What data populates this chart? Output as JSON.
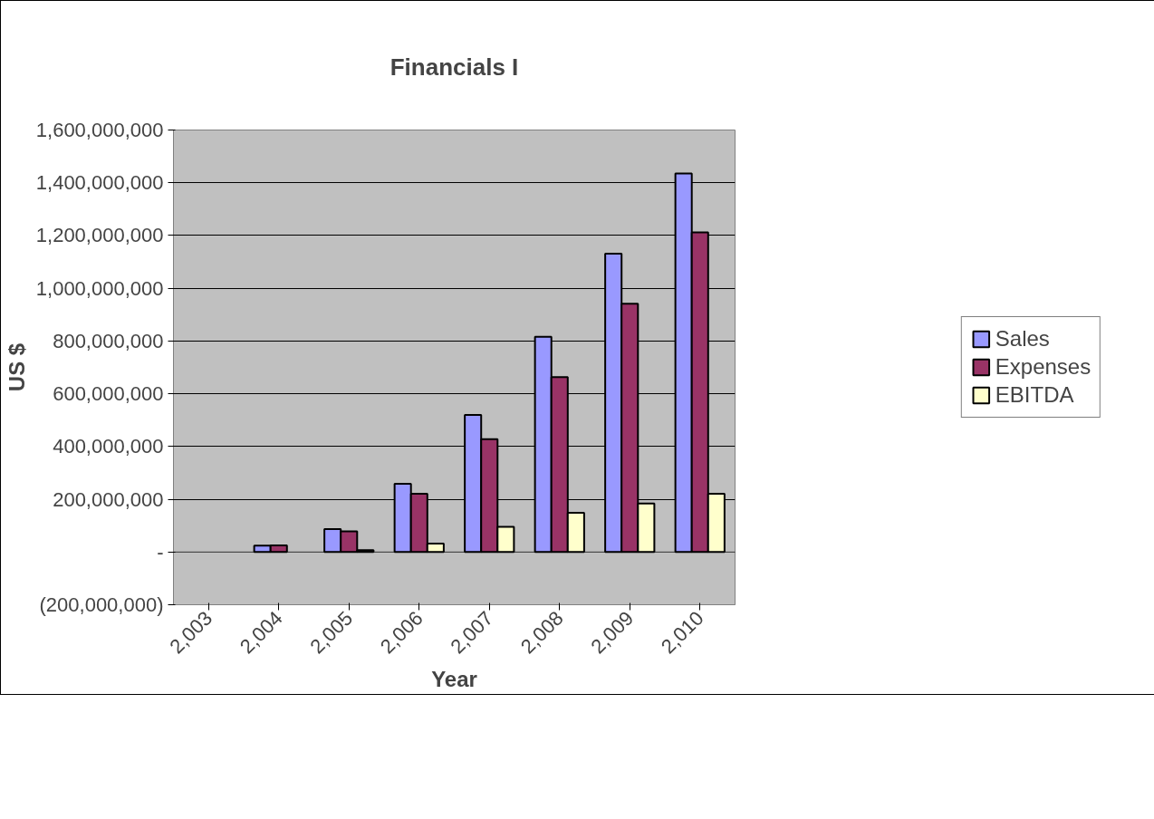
{
  "chart_data": {
    "type": "bar",
    "title": "Financials I",
    "xlabel": "Year",
    "ylabel": "US $",
    "categories": [
      "2,003",
      "2,004",
      "2,005",
      "2,006",
      "2,007",
      "2,008",
      "2,009",
      "2,010"
    ],
    "series": [
      {
        "name": "Sales",
        "color": "#9999ff",
        "values": [
          null,
          24000000,
          87000000,
          259000000,
          520000000,
          816000000,
          1131000000,
          1435000000
        ]
      },
      {
        "name": "Expenses",
        "color": "#993366",
        "values": [
          null,
          25000000,
          78000000,
          221000000,
          428000000,
          663000000,
          941000000,
          1212000000
        ]
      },
      {
        "name": "EBITDA",
        "color": "#ffffcc",
        "values": [
          null,
          null,
          7000000,
          32000000,
          95000000,
          149000000,
          184000000,
          221000000
        ]
      }
    ],
    "ylim": [
      -200000000,
      1600000000
    ],
    "yticks": [
      {
        "value": -200000000,
        "label": "(200,000,000)"
      },
      {
        "value": 0,
        "label": "-"
      },
      {
        "value": 200000000,
        "label": "200,000,000"
      },
      {
        "value": 400000000,
        "label": "400,000,000"
      },
      {
        "value": 600000000,
        "label": "600,000,000"
      },
      {
        "value": 800000000,
        "label": "800,000,000"
      },
      {
        "value": 1000000000,
        "label": "1,000,000,000"
      },
      {
        "value": 1200000000,
        "label": "1,200,000,000"
      },
      {
        "value": 1400000000,
        "label": "1,400,000,000"
      },
      {
        "value": 1600000000,
        "label": "1,600,000,000"
      }
    ],
    "grid": "y",
    "legend": "right"
  }
}
